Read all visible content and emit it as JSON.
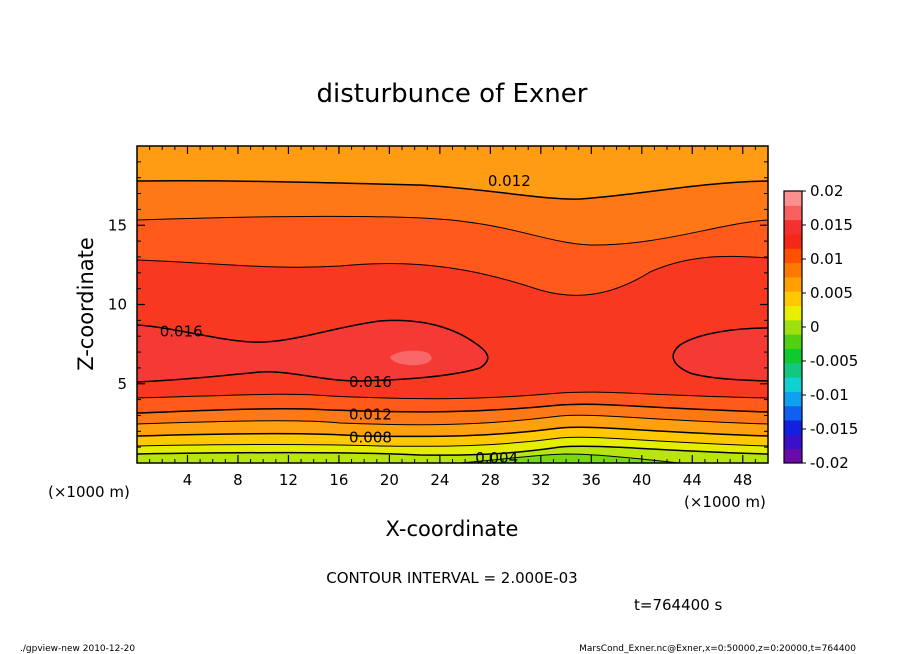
{
  "chart_data": {
    "type": "heatmap",
    "title": "disturbunce of Exner",
    "xlabel": "X-coordinate",
    "ylabel": "Z-coordinate",
    "x_unit_label": "(×1000 m)",
    "y_unit_label": "(×1000 m)",
    "xlim": [
      0,
      50
    ],
    "ylim": [
      0,
      20
    ],
    "x_ticks": [
      "4",
      "8",
      "12",
      "16",
      "20",
      "24",
      "28",
      "32",
      "36",
      "40",
      "44",
      "48"
    ],
    "y_ticks": [
      "5",
      "10",
      "15"
    ],
    "colorbar": {
      "min": -0.02,
      "max": 0.02,
      "tick_labels": [
        "0.02",
        "0.015",
        "0.01",
        "0.005",
        "0",
        "-0.005",
        "-0.01",
        "-0.015",
        "-0.02"
      ],
      "colors": [
        "#6a0aa8",
        "#3a10c8",
        "#1420e0",
        "#1060f0",
        "#10a0f0",
        "#10d0d0",
        "#10c880",
        "#10c830",
        "#50d010",
        "#a0e010",
        "#e8f000",
        "#ffc800",
        "#ffa000",
        "#ff7800",
        "#ff5000",
        "#f52818",
        "#f53030",
        "#f86060",
        "#fa9090"
      ]
    },
    "contour_labels": [
      {
        "text": "0.012",
        "x": 29.5,
        "z": 17.8
      },
      {
        "text": "0.016",
        "x": 3.5,
        "z": 8.3
      },
      {
        "text": "0.016",
        "x": 18.5,
        "z": 5.1
      },
      {
        "text": "0.012",
        "x": 18.5,
        "z": 3.05
      },
      {
        "text": "0.008",
        "x": 18.5,
        "z": 1.6
      },
      {
        "text": "0.004",
        "x": 28.5,
        "z": 0.3
      }
    ],
    "contour_interval": "CONTOUR INTERVAL = 2.000E-03",
    "time_label": "t=764400 s"
  },
  "footer": {
    "left": "./gpview-new 2010-12-20",
    "right": "MarsCond_Exner.nc@Exner,x=0:50000,z=0:20000,t=764400"
  }
}
